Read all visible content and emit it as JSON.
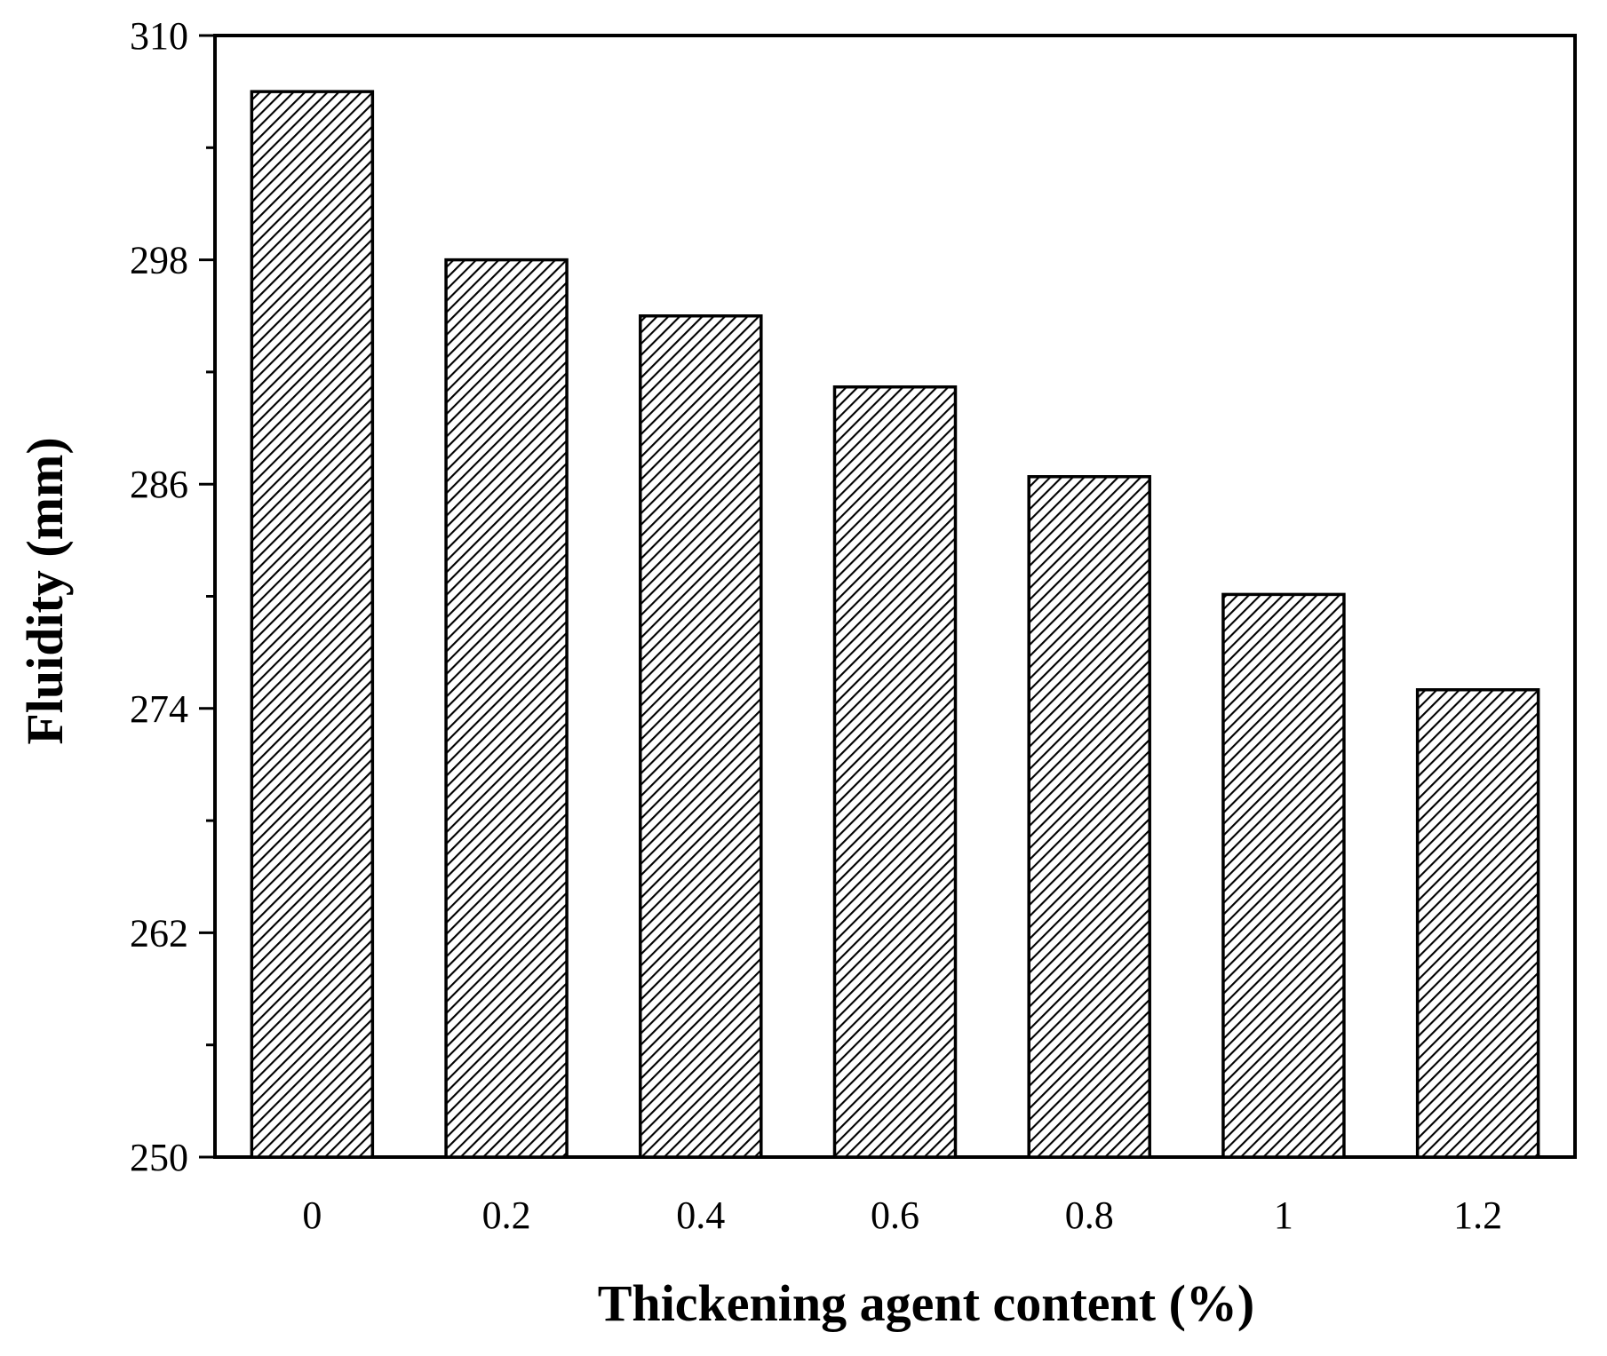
{
  "chart_data": {
    "type": "bar",
    "categories": [
      "0",
      "0.2",
      "0.4",
      "0.6",
      "0.8",
      "1",
      "1.2"
    ],
    "values": [
      307,
      298,
      295,
      291.2,
      286.4,
      280.1,
      275
    ],
    "xlabel": "Thickening agent content (%)",
    "ylabel": "Fluidity (mm)",
    "ylim": [
      250,
      310
    ],
    "yticks": [
      "250",
      "262",
      "274",
      "286",
      "298",
      "310"
    ],
    "grid": false,
    "bar_fill": "hatched",
    "colors": {
      "bar_stroke": "#000000",
      "hatch": "#000000",
      "background": "#ffffff"
    }
  }
}
